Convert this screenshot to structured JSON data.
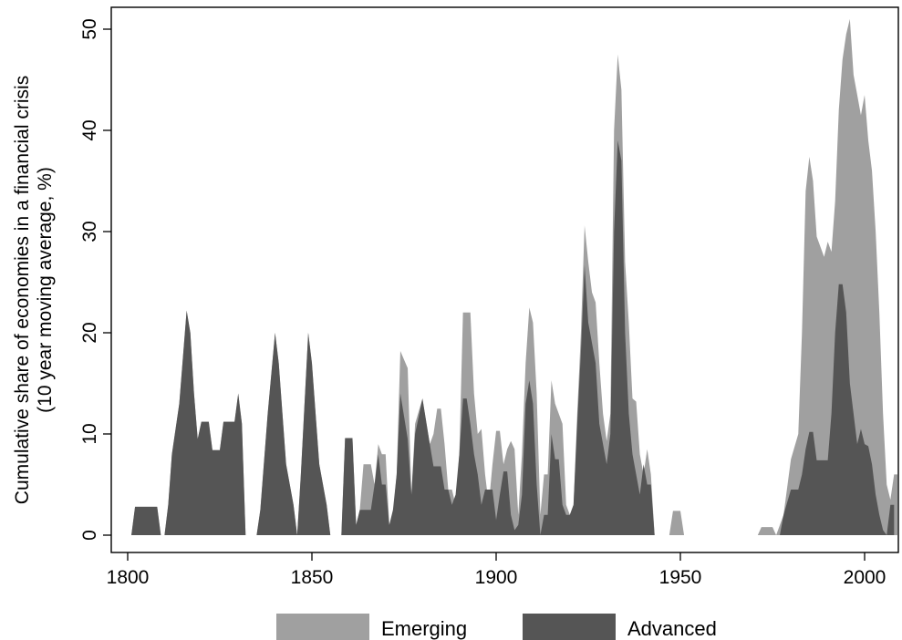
{
  "chart_data": {
    "type": "area",
    "title": "",
    "xlabel": "",
    "ylabel_lines": [
      "Cumulative share of economies in a financial crisis",
      "(10 year moving average, %)"
    ],
    "xlim": [
      1800,
      2010
    ],
    "ylim": [
      0,
      52
    ],
    "xticks": [
      1800,
      1850,
      1900,
      1950,
      2000
    ],
    "yticks": [
      0,
      10,
      20,
      30,
      40,
      50
    ],
    "grid": false,
    "legend_position": "bottom",
    "series": [
      {
        "name": "Emerging",
        "color": "#a0a0a0",
        "points": [
          [
            1801,
            0
          ],
          [
            1802,
            2.8
          ],
          [
            1803,
            2.8
          ],
          [
            1806,
            2.8
          ],
          [
            1808,
            2.8
          ],
          [
            1809,
            0
          ],
          [
            1810,
            0
          ],
          [
            1811,
            3
          ],
          [
            1812,
            8
          ],
          [
            1814,
            13
          ],
          [
            1816,
            22.2
          ],
          [
            1817,
            20
          ],
          [
            1818,
            14
          ],
          [
            1819,
            9.5
          ],
          [
            1820,
            11.2
          ],
          [
            1822,
            11.2
          ],
          [
            1823,
            8.4
          ],
          [
            1825,
            8.4
          ],
          [
            1826,
            11.2
          ],
          [
            1829,
            11.2
          ],
          [
            1830,
            14
          ],
          [
            1831,
            11
          ],
          [
            1832,
            0
          ],
          [
            1835,
            0
          ],
          [
            1836,
            2.5
          ],
          [
            1838,
            12
          ],
          [
            1840,
            20
          ],
          [
            1841,
            17
          ],
          [
            1843,
            7
          ],
          [
            1845,
            3
          ],
          [
            1846,
            0
          ],
          [
            1847,
            6
          ],
          [
            1849,
            20
          ],
          [
            1850,
            17
          ],
          [
            1851,
            12
          ],
          [
            1852,
            7
          ],
          [
            1854,
            3
          ],
          [
            1855,
            0
          ],
          [
            1858,
            0
          ],
          [
            1859,
            9.6
          ],
          [
            1861,
            9.6
          ],
          [
            1862,
            1
          ],
          [
            1863,
            2.5
          ],
          [
            1864,
            7
          ],
          [
            1866,
            7
          ],
          [
            1867,
            5
          ],
          [
            1868,
            9
          ],
          [
            1869,
            8
          ],
          [
            1870,
            8
          ],
          [
            1871,
            1
          ],
          [
            1872,
            2
          ],
          [
            1873,
            6
          ],
          [
            1874,
            18.2
          ],
          [
            1876,
            16.5
          ],
          [
            1877,
            4
          ],
          [
            1878,
            11
          ],
          [
            1880,
            13.5
          ],
          [
            1882,
            9
          ],
          [
            1883,
            10
          ],
          [
            1884,
            12.5
          ],
          [
            1885,
            12.5
          ],
          [
            1886,
            9
          ],
          [
            1887,
            4.5
          ],
          [
            1888,
            4.5
          ],
          [
            1889,
            3
          ],
          [
            1890,
            8
          ],
          [
            1891,
            22
          ],
          [
            1893,
            22
          ],
          [
            1894,
            14
          ],
          [
            1895,
            10
          ],
          [
            1896,
            10.5
          ],
          [
            1897,
            6
          ],
          [
            1898,
            3
          ],
          [
            1899,
            7
          ],
          [
            1900,
            10.3
          ],
          [
            1901,
            10.3
          ],
          [
            1902,
            7
          ],
          [
            1903,
            8.5
          ],
          [
            1904,
            9.3
          ],
          [
            1905,
            8.5
          ],
          [
            1906,
            2
          ],
          [
            1907,
            8
          ],
          [
            1908,
            17
          ],
          [
            1909,
            22.5
          ],
          [
            1910,
            21
          ],
          [
            1911,
            14
          ],
          [
            1912,
            2
          ],
          [
            1913,
            6
          ],
          [
            1914,
            6
          ],
          [
            1915,
            15.3
          ],
          [
            1916,
            13
          ],
          [
            1918,
            11
          ],
          [
            1919,
            3
          ],
          [
            1920,
            2
          ],
          [
            1921,
            3
          ],
          [
            1922,
            12
          ],
          [
            1923,
            20
          ],
          [
            1924,
            30.6
          ],
          [
            1925,
            27
          ],
          [
            1926,
            24
          ],
          [
            1927,
            23
          ],
          [
            1928,
            17
          ],
          [
            1929,
            12
          ],
          [
            1930,
            9.3
          ],
          [
            1931,
            12
          ],
          [
            1932,
            40
          ],
          [
            1933,
            47.5
          ],
          [
            1934,
            44
          ],
          [
            1935,
            27
          ],
          [
            1936,
            21
          ],
          [
            1937,
            13.5
          ],
          [
            1938,
            13.2
          ],
          [
            1939,
            8
          ],
          [
            1940,
            6
          ],
          [
            1941,
            8.5
          ],
          [
            1942,
            6
          ],
          [
            1943,
            0
          ],
          [
            1945,
            0
          ],
          [
            1947,
            0
          ],
          [
            1948,
            2.4
          ],
          [
            1950,
            2.4
          ],
          [
            1951,
            0
          ],
          [
            1971,
            0
          ],
          [
            1972,
            0.8
          ],
          [
            1975,
            0.8
          ],
          [
            1976,
            0
          ],
          [
            1978,
            2
          ],
          [
            1980,
            7.5
          ],
          [
            1982,
            10
          ],
          [
            1983,
            20
          ],
          [
            1984,
            34
          ],
          [
            1985,
            37.4
          ],
          [
            1986,
            35
          ],
          [
            1987,
            29.5
          ],
          [
            1988,
            28.5
          ],
          [
            1989,
            27.5
          ],
          [
            1990,
            29
          ],
          [
            1991,
            28
          ],
          [
            1992,
            33
          ],
          [
            1993,
            42
          ],
          [
            1994,
            47
          ],
          [
            1995,
            49.5
          ],
          [
            1996,
            51
          ],
          [
            1997,
            45.5
          ],
          [
            1998,
            43.5
          ],
          [
            1999,
            41.5
          ],
          [
            2000,
            43.5
          ],
          [
            2001,
            39
          ],
          [
            2002,
            36
          ],
          [
            2003,
            30
          ],
          [
            2004,
            22
          ],
          [
            2005,
            12
          ],
          [
            2006,
            5
          ],
          [
            2007,
            3.5
          ],
          [
            2008,
            6
          ],
          [
            2009,
            6
          ]
        ]
      },
      {
        "name": "Advanced",
        "color": "#555555",
        "points": [
          [
            1801,
            0
          ],
          [
            1802,
            2.8
          ],
          [
            1803,
            2.8
          ],
          [
            1806,
            2.8
          ],
          [
            1808,
            2.8
          ],
          [
            1809,
            0
          ],
          [
            1810,
            0
          ],
          [
            1811,
            3
          ],
          [
            1812,
            8
          ],
          [
            1814,
            13
          ],
          [
            1816,
            22.2
          ],
          [
            1817,
            20
          ],
          [
            1818,
            14
          ],
          [
            1819,
            9.5
          ],
          [
            1820,
            11.2
          ],
          [
            1822,
            11.2
          ],
          [
            1823,
            8.4
          ],
          [
            1825,
            8.4
          ],
          [
            1826,
            11.2
          ],
          [
            1829,
            11.2
          ],
          [
            1830,
            14
          ],
          [
            1831,
            11
          ],
          [
            1832,
            0
          ],
          [
            1835,
            0
          ],
          [
            1836,
            2.5
          ],
          [
            1838,
            12
          ],
          [
            1840,
            20
          ],
          [
            1841,
            17
          ],
          [
            1843,
            7
          ],
          [
            1845,
            3
          ],
          [
            1846,
            0
          ],
          [
            1847,
            6
          ],
          [
            1849,
            20
          ],
          [
            1850,
            17
          ],
          [
            1851,
            12
          ],
          [
            1852,
            7
          ],
          [
            1854,
            3
          ],
          [
            1855,
            0
          ],
          [
            1858,
            0
          ],
          [
            1859,
            9.6
          ],
          [
            1861,
            9.6
          ],
          [
            1862,
            1
          ],
          [
            1863,
            2.5
          ],
          [
            1866,
            2.5
          ],
          [
            1867,
            5
          ],
          [
            1868,
            8
          ],
          [
            1869,
            5
          ],
          [
            1870,
            5
          ],
          [
            1871,
            1
          ],
          [
            1872,
            2.5
          ],
          [
            1873,
            6
          ],
          [
            1874,
            14
          ],
          [
            1876,
            9.5
          ],
          [
            1877,
            4
          ],
          [
            1878,
            10
          ],
          [
            1880,
            13.5
          ],
          [
            1882,
            9
          ],
          [
            1883,
            6.8
          ],
          [
            1885,
            6.8
          ],
          [
            1886,
            4.5
          ],
          [
            1887,
            4.5
          ],
          [
            1888,
            3
          ],
          [
            1889,
            4
          ],
          [
            1890,
            8
          ],
          [
            1891,
            13.5
          ],
          [
            1892,
            13.5
          ],
          [
            1893,
            11
          ],
          [
            1894,
            8
          ],
          [
            1895,
            6
          ],
          [
            1896,
            3
          ],
          [
            1897,
            4.5
          ],
          [
            1899,
            4.5
          ],
          [
            1900,
            1.5
          ],
          [
            1901,
            4
          ],
          [
            1902,
            6.3
          ],
          [
            1903,
            6.3
          ],
          [
            1904,
            2
          ],
          [
            1905,
            0.5
          ],
          [
            1906,
            1
          ],
          [
            1907,
            4
          ],
          [
            1908,
            13
          ],
          [
            1909,
            15.3
          ],
          [
            1910,
            13
          ],
          [
            1911,
            5
          ],
          [
            1912,
            0
          ],
          [
            1913,
            2
          ],
          [
            1914,
            2
          ],
          [
            1915,
            10
          ],
          [
            1916,
            7.5
          ],
          [
            1917,
            7.5
          ],
          [
            1918,
            3
          ],
          [
            1919,
            2
          ],
          [
            1920,
            2
          ],
          [
            1921,
            3
          ],
          [
            1922,
            11
          ],
          [
            1923,
            18
          ],
          [
            1924,
            26.7
          ],
          [
            1925,
            21
          ],
          [
            1926,
            19
          ],
          [
            1927,
            17
          ],
          [
            1928,
            11
          ],
          [
            1929,
            9
          ],
          [
            1930,
            7
          ],
          [
            1931,
            10
          ],
          [
            1932,
            30
          ],
          [
            1933,
            39
          ],
          [
            1934,
            37
          ],
          [
            1935,
            20
          ],
          [
            1936,
            12
          ],
          [
            1937,
            8
          ],
          [
            1938,
            6
          ],
          [
            1939,
            4
          ],
          [
            1940,
            7
          ],
          [
            1941,
            5
          ],
          [
            1942,
            5
          ],
          [
            1943,
            0
          ],
          [
            1975,
            0
          ],
          [
            1977,
            0
          ],
          [
            1978,
            2
          ],
          [
            1980,
            4.5
          ],
          [
            1982,
            4.5
          ],
          [
            1983,
            6
          ],
          [
            1984,
            8.5
          ],
          [
            1985,
            10.2
          ],
          [
            1986,
            10.2
          ],
          [
            1987,
            7.4
          ],
          [
            1990,
            7.4
          ],
          [
            1991,
            12
          ],
          [
            1992,
            20
          ],
          [
            1993,
            24.8
          ],
          [
            1994,
            24.8
          ],
          [
            1995,
            22
          ],
          [
            1996,
            15
          ],
          [
            1997,
            12
          ],
          [
            1998,
            9
          ],
          [
            1999,
            10.5
          ],
          [
            2000,
            9
          ],
          [
            2001,
            8.8
          ],
          [
            2002,
            7
          ],
          [
            2003,
            4
          ],
          [
            2004,
            2
          ],
          [
            2005,
            0.5
          ],
          [
            2006,
            0
          ],
          [
            2007,
            3
          ],
          [
            2008,
            3
          ]
        ]
      }
    ]
  }
}
